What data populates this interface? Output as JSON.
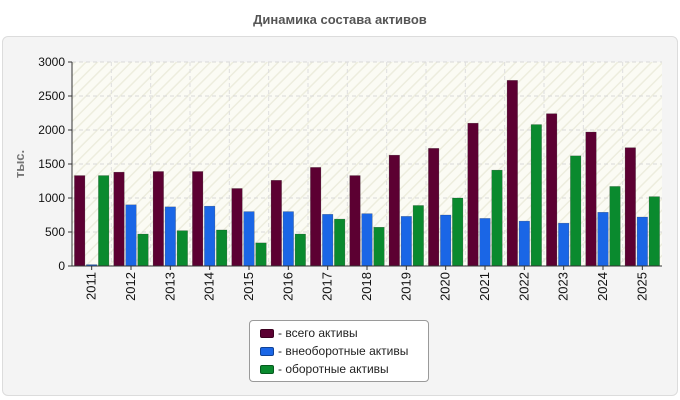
{
  "chart_data": {
    "type": "bar",
    "title": "Динамика состава активов",
    "ylabel": "тыс.",
    "xlabel": "",
    "ylim": [
      0,
      3000
    ],
    "yticks": [
      0,
      500,
      1000,
      1500,
      2000,
      2500,
      3000
    ],
    "grid": true,
    "legend_position": "bottom",
    "categories": [
      "2011",
      "2012",
      "2013",
      "2014",
      "2015",
      "2016",
      "2017",
      "2018",
      "2019",
      "2020",
      "2021",
      "2022",
      "2023",
      "2024",
      "2025"
    ],
    "series": [
      {
        "name": "- всего активы",
        "color": "#5c0032",
        "values": [
          1330,
          1380,
          1390,
          1390,
          1140,
          1260,
          1450,
          1330,
          1630,
          1730,
          2100,
          2730,
          2240,
          1970,
          1740
        ]
      },
      {
        "name": "- внеоборотные активы",
        "color": "#1a66e6",
        "values": [
          20,
          900,
          870,
          880,
          800,
          800,
          760,
          770,
          730,
          750,
          700,
          660,
          630,
          790,
          720
        ]
      },
      {
        "name": "- оборотные активы",
        "color": "#0a8a2e",
        "values": [
          1330,
          470,
          520,
          530,
          340,
          470,
          690,
          570,
          890,
          1000,
          1410,
          2080,
          1620,
          1170,
          1020
        ]
      }
    ]
  }
}
